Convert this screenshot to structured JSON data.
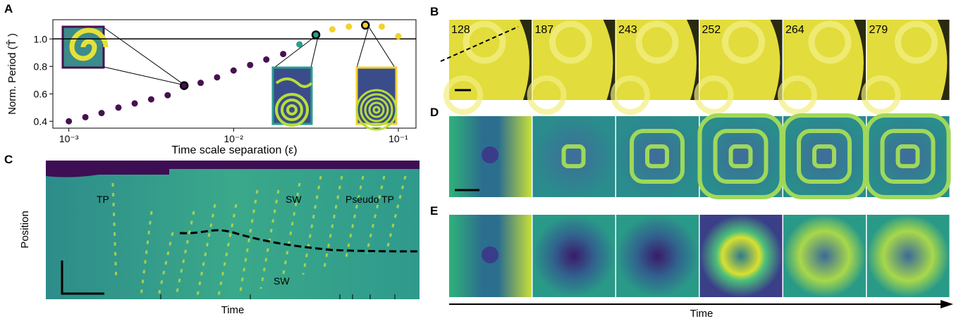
{
  "chart_data": {
    "type": "scatter",
    "xlabel": "Time scale separation (ε)",
    "ylabel": "Norm. Period (T̂ )",
    "log_x": true,
    "xlim": [
      0.0008,
      0.128
    ],
    "ylim": [
      0.35,
      1.14
    ],
    "xticks": [
      {
        "value": 0.001,
        "label": "10⁻³"
      },
      {
        "value": 0.01,
        "label": "10⁻²"
      },
      {
        "value": 0.1,
        "label": "10⁻¹"
      }
    ],
    "yticks": [
      0.4,
      0.6,
      0.8,
      {
        "value": 1.0,
        "label": "1.0"
      }
    ],
    "hline": 1,
    "series": [
      {
        "color": "#46124f",
        "x": [
          0.001,
          0.00126,
          0.00158,
          0.002,
          0.00251,
          0.00316,
          0.00398,
          0.00501,
          0.00631,
          0.00794,
          0.01,
          0.0126,
          0.0158,
          0.02
        ],
        "values": [
          0.4,
          0.43,
          0.46,
          0.5,
          0.53,
          0.56,
          0.59,
          0.66,
          0.68,
          0.72,
          0.77,
          0.81,
          0.85,
          0.89
        ],
        "highlight": [
          7
        ]
      },
      {
        "color": "#2a9d8f",
        "x": [
          0.0251,
          0.0316
        ],
        "values": [
          0.96,
          1.03
        ],
        "highlight": [
          1
        ]
      },
      {
        "color": "#f2d22e",
        "x": [
          0.0398,
          0.0501,
          0.0631,
          0.0794,
          0.1
        ],
        "values": [
          1.07,
          1.09,
          1.1,
          1.09,
          1.02
        ],
        "highlight": [
          2
        ]
      }
    ]
  },
  "panel_labels": [
    "A",
    "B",
    "C",
    "D",
    "E"
  ],
  "panel_b": {
    "frame_labels": [
      "128",
      "187",
      "243",
      "252",
      "264",
      "279"
    ]
  },
  "panel_c": {
    "labels": [
      "TP",
      "SW",
      "Pseudo TP",
      "SW"
    ],
    "xlabel": "Time",
    "ylabel": "Position"
  },
  "panel_de": {
    "xlabel": "Time"
  }
}
